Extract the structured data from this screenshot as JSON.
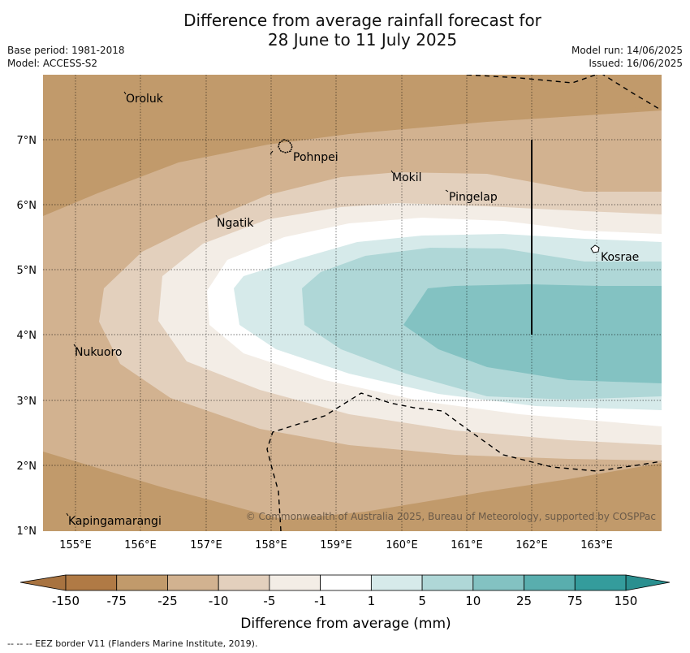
{
  "title_line1": "Difference from average rainfall forecast for",
  "title_line2": "28 June to 11 July 2025",
  "base_period": "Base period: 1981-2018",
  "model": "Model: ACCESS-S2",
  "model_run": "Model run: 14/06/2025",
  "issued": "Issued: 16/06/2025",
  "copyright": "© Commonwealth of Australia 2025, Bureau of Meteorology, supported by COSPPac",
  "lon_ticks": [
    "155°E",
    "156°E",
    "157°E",
    "158°E",
    "159°E",
    "160°E",
    "161°E",
    "162°E",
    "163°E"
  ],
  "lat_ticks": [
    "7°N",
    "6°N",
    "5°N",
    "4°N",
    "3°N",
    "2°N",
    "1°N"
  ],
  "places": [
    {
      "name": "Oroluk"
    },
    {
      "name": "Pohnpei"
    },
    {
      "name": "Mokil"
    },
    {
      "name": "Pingelap"
    },
    {
      "name": "Ngatik"
    },
    {
      "name": "Kosrae"
    },
    {
      "name": "Nukuoro"
    },
    {
      "name": "Kapingamarangi"
    }
  ],
  "colorbar": {
    "labels": [
      "-150",
      "-75",
      "-25",
      "-10",
      "-5",
      "-1",
      "1",
      "5",
      "10",
      "25",
      "75",
      "150"
    ],
    "colors": [
      "#b07a45",
      "#c19a6b",
      "#d2b290",
      "#e3d0bd",
      "#f3ede6",
      "#ffffff",
      "#d6eaea",
      "#afd7d7",
      "#83c2c2",
      "#59aeae",
      "#349c9c"
    ],
    "title": "Difference from average (mm)"
  },
  "legend_note": "--  --  -- EEZ border V11 (Flanders Marine Institute, 2019)."
}
